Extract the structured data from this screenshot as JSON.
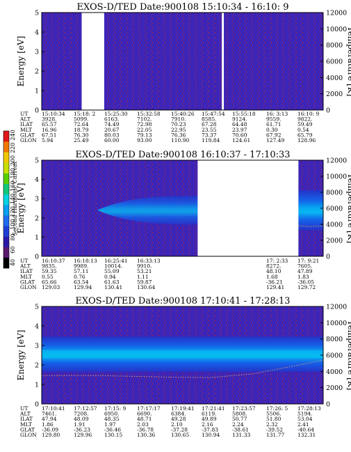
{
  "panels": [
    {
      "title": "EXOS-D/TED  Date:900108  15:10:34 - 16:10: 9",
      "ylabel_left": "Energy [eV]",
      "ylabel_right": "Temperature [K]",
      "ylim": [
        0,
        5
      ],
      "yticks": [
        "0",
        "1",
        "2",
        "3",
        "4",
        "5"
      ],
      "ylim_right": [
        0,
        12000
      ],
      "rticks": [
        "0",
        "2000",
        "4000",
        "6000",
        "8000",
        "10000",
        "12000"
      ],
      "gaps": [
        [
          0.142,
          0.222
        ],
        [
          0.64,
          0.647
        ]
      ],
      "band": null,
      "temp_curve": null,
      "ephem_labels": [
        "UT",
        "ALT",
        "ILAT",
        "MLT",
        "GLAT",
        "GLON"
      ],
      "ephem_cols": [
        [
          "15:10:34",
          "3928.",
          "65.57",
          "16.96",
          "67.51",
          "5.94"
        ],
        [
          "15:18: 2",
          "5099.",
          "72.64",
          "18.79",
          "76.30",
          "25.49"
        ],
        [
          "15:25:30",
          "6163.",
          "74.49",
          "20.67",
          "80.03",
          "60.00"
        ],
        [
          "15:32:58",
          "7102.",
          "72.98",
          "22.05",
          "79.13",
          "93.00"
        ],
        [
          "15:40:26",
          "7910.",
          "70.23",
          "22.95",
          "76.36",
          "110.90"
        ],
        [
          "15:47:54",
          "8585.",
          "67.28",
          "23.55",
          "73.37",
          "119.84"
        ],
        [
          "15:55:18",
          "9124.",
          "64.48",
          "23.97",
          "70.60",
          "124.61"
        ],
        [
          "16: 3:13",
          "9559.",
          "61.71",
          "0.30",
          "67.92",
          "127.49"
        ],
        [
          "16:10: 9",
          "9822.",
          "59.49",
          "0.54",
          "65.79",
          "128.96"
        ]
      ]
    },
    {
      "title": "EXOS-D/TED  Date:900108  16:10:37 - 17:10:33",
      "ylabel_left": "Energy [eV]",
      "ylabel_right": "Temperature [K]",
      "ylim": [
        0,
        5
      ],
      "yticks": [
        "0",
        "1",
        "2",
        "3",
        "4",
        "5"
      ],
      "ylim_right": [
        0,
        12000
      ],
      "rticks": [
        "0",
        "2000",
        "4000",
        "6000",
        "8000",
        "10000",
        "12000"
      ],
      "gaps": [
        [
          0.554,
          0.912
        ]
      ],
      "band": {
        "center": 2.4,
        "half_width": 0.75,
        "until": 0.554,
        "restart": 0.912
      },
      "temp_curve": [
        [
          0.912,
          3800
        ],
        [
          0.95,
          3700
        ],
        [
          1.0,
          3800
        ]
      ],
      "ephem_labels": [
        "UT",
        "ALT",
        "ILAT",
        "MLT",
        "GLAT",
        "GLON"
      ],
      "ephem_cols": [
        [
          "16:10:37",
          "9835.",
          "59.35",
          "0.55",
          "65.66",
          "129.03"
        ],
        [
          "16:18:13",
          "9989.",
          "57.11",
          "0.76",
          "63.54",
          "129.94"
        ],
        [
          "16:25:41",
          "10014.",
          "55.09",
          "0.94",
          "61.63",
          "130.41"
        ],
        [
          "16:33:13",
          "9910.",
          "53.21",
          "1.11",
          "59.87",
          "130.64"
        ],
        [
          "",
          "",
          "",
          "",
          "",
          ""
        ],
        [
          "",
          "",
          "",
          "",
          "",
          ""
        ],
        [
          "",
          "",
          "",
          "",
          "",
          ""
        ],
        [
          "17: 2:33",
          "8272.",
          "48.10",
          "1.68",
          "-36.21",
          "129.41"
        ],
        [
          "17: 9:21",
          "7605.",
          "47.89",
          "1.83",
          "-36.05",
          "129.72"
        ]
      ]
    },
    {
      "title": "EXOS-D/TED  Date:900108  17:10:41 - 17:28:13",
      "ylabel_left": "Energy [eV]",
      "ylabel_right": "Temperature [K]",
      "ylim": [
        0,
        5
      ],
      "yticks": [
        "0",
        "1",
        "2",
        "3",
        "4",
        "5"
      ],
      "ylim_right": [
        0,
        12000
      ],
      "rticks": [
        "0",
        "2000",
        "4000",
        "6000",
        "8000",
        "10000",
        "12000"
      ],
      "gaps": [],
      "band": {
        "center": 2.55,
        "half_width": 0.9,
        "until": 1.0,
        "restart": null
      },
      "temp_curve": [
        [
          0.0,
          3500
        ],
        [
          0.2,
          3500
        ],
        [
          0.45,
          3300
        ],
        [
          0.6,
          3250
        ],
        [
          0.75,
          3700
        ],
        [
          0.9,
          4700
        ],
        [
          1.0,
          5400
        ]
      ],
      "ephem_labels": [
        "UT",
        "ALT",
        "ILAT",
        "MLT",
        "GLAT",
        "GLON"
      ],
      "ephem_cols": [
        [
          "17:10:41",
          "7461.",
          "47.94",
          "1.86",
          "-36.09",
          "129.80"
        ],
        [
          "17:12:57",
          "7208.",
          "48.09",
          "1.91",
          "-36.23",
          "129.96"
        ],
        [
          "17:15: 9",
          "6950.",
          "48.35",
          "1.97",
          "-36.46",
          "130.15"
        ],
        [
          "17:17:17",
          "6690.",
          "48.71",
          "2.03",
          "-36.78",
          "130.36"
        ],
        [
          "17:19:41",
          "6384.",
          "49.28",
          "2.10",
          "-37.28",
          "130.65"
        ],
        [
          "17:21:41",
          "6119.",
          "49.89",
          "2.16",
          "-37.83",
          "130.94"
        ],
        [
          "17:23:57",
          "5808.",
          "50.77",
          "2.24",
          "-38.61",
          "131.33"
        ],
        [
          "17:26: 5",
          "5506.",
          "51.80",
          "2.32",
          "-39.52",
          "131.77"
        ],
        [
          "17:28:13",
          "5194.",
          "53.04",
          "2.41",
          "-40.64",
          "132.31"
        ]
      ]
    }
  ],
  "colorbar": {
    "label": "Second Harmonic Current",
    "ticks": [
      "40",
      "60",
      "80",
      "100",
      "120",
      "140",
      "160",
      "180",
      "200",
      "220",
      "240"
    ],
    "colors": [
      "#000000",
      "#5a1a6e",
      "#2b1aa8",
      "#1f3fd6",
      "#1f6cf0",
      "#0aa0f0",
      "#06d2e0",
      "#12c87a",
      "#5ad000",
      "#c8e000",
      "#f0c800",
      "#f07800",
      "#e01818"
    ]
  }
}
